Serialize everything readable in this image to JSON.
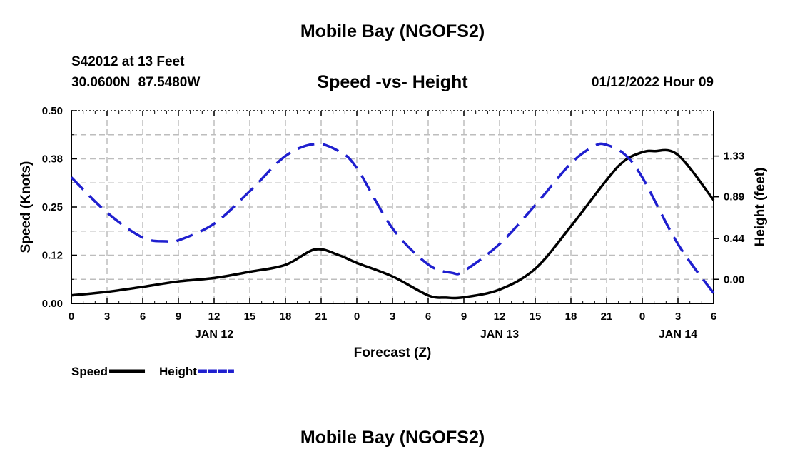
{
  "header": {
    "title": "Mobile Bay (NGOFS2)",
    "station": "S42012 at 13 Feet",
    "coords": "30.0600N  87.5480W",
    "subtitle": "Speed -vs- Height",
    "run_time": "01/12/2022 Hour 09"
  },
  "footer": {
    "title": "Mobile Bay (NGOFS2)"
  },
  "chart_data": {
    "type": "line",
    "title": "Speed -vs- Height",
    "xlabel": "Forecast (Z)",
    "x_ticks": [
      "0",
      "3",
      "6",
      "9",
      "12",
      "15",
      "18",
      "21",
      "0",
      "3",
      "6",
      "9",
      "12",
      "15",
      "18",
      "21",
      "0",
      "3",
      "6"
    ],
    "date_labels": [
      {
        "label": "JAN 12",
        "hour": 12
      },
      {
        "label": "JAN 13",
        "hour": 36
      },
      {
        "label": "JAN 14",
        "hour": 51
      }
    ],
    "xlim": [
      0,
      54
    ],
    "ylabel_left": "Speed (Knots)",
    "ylim_left": [
      0,
      0.5
    ],
    "yticks_left": [
      "0.00",
      "0.12",
      "0.25",
      "0.38",
      "0.50"
    ],
    "ylabel_right": "Height (feet)",
    "ylim_right": [
      -0.26,
      1.82
    ],
    "yticks_right": [
      {
        "label": "0.00",
        "v": 0.0
      },
      {
        "label": "0.44",
        "v": 0.44
      },
      {
        "label": "0.89",
        "v": 0.89
      },
      {
        "label": "1.33",
        "v": 1.33
      }
    ],
    "grid": true,
    "legend_position": "bottom-left",
    "series": [
      {
        "name": "Speed",
        "axis": "left",
        "color": "#000000",
        "style": "solid",
        "points": [
          [
            0,
            0.021
          ],
          [
            3,
            0.03
          ],
          [
            6,
            0.043
          ],
          [
            9,
            0.057
          ],
          [
            12,
            0.066
          ],
          [
            15,
            0.082
          ],
          [
            18,
            0.1
          ],
          [
            20.5,
            0.14
          ],
          [
            22.5,
            0.125
          ],
          [
            24,
            0.105
          ],
          [
            27,
            0.07
          ],
          [
            30,
            0.021
          ],
          [
            31.5,
            0.015
          ],
          [
            33,
            0.016
          ],
          [
            36,
            0.036
          ],
          [
            39,
            0.09
          ],
          [
            42,
            0.2
          ],
          [
            45,
            0.32
          ],
          [
            46.5,
            0.37
          ],
          [
            48,
            0.392
          ],
          [
            49,
            0.395
          ],
          [
            51,
            0.385
          ],
          [
            54,
            0.268
          ]
        ]
      },
      {
        "name": "Height",
        "axis": "right",
        "color": "#1f1fcf",
        "style": "dashed",
        "points": [
          [
            0,
            1.1
          ],
          [
            3,
            0.72
          ],
          [
            6,
            0.45
          ],
          [
            8,
            0.41
          ],
          [
            9,
            0.42
          ],
          [
            12,
            0.6
          ],
          [
            15,
            0.95
          ],
          [
            18,
            1.33
          ],
          [
            20.5,
            1.46
          ],
          [
            22.5,
            1.38
          ],
          [
            24,
            1.2
          ],
          [
            27,
            0.55
          ],
          [
            30,
            0.16
          ],
          [
            32,
            0.07
          ],
          [
            33,
            0.09
          ],
          [
            36,
            0.38
          ],
          [
            39,
            0.8
          ],
          [
            42,
            1.25
          ],
          [
            44,
            1.44
          ],
          [
            45,
            1.45
          ],
          [
            46.5,
            1.35
          ],
          [
            48,
            1.1
          ],
          [
            51,
            0.38
          ],
          [
            54,
            -0.15
          ]
        ]
      }
    ]
  }
}
